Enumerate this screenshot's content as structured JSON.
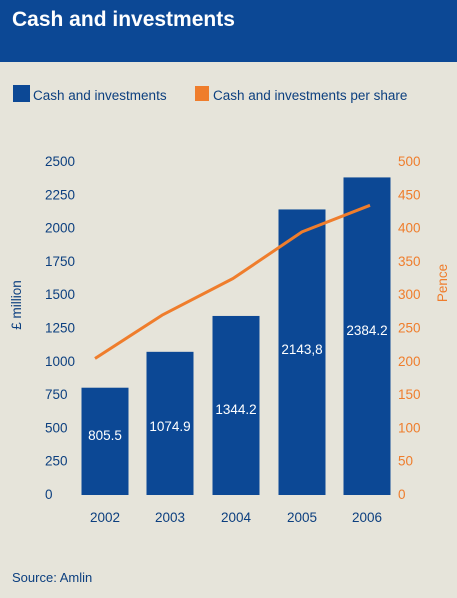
{
  "header": {
    "title": "Cash and investments"
  },
  "footer": {
    "source": "Source: Amlin"
  },
  "colors": {
    "bar": "#0c4895",
    "line": "#ef7d2c",
    "header": "#0c4895",
    "background": "#e6e4da",
    "axis_text": "#0c3f7f"
  },
  "chart_data": {
    "type": "bar",
    "title": "Cash and investments",
    "categories": [
      "2002",
      "2003",
      "2004",
      "2005",
      "2006"
    ],
    "series": [
      {
        "name": "Cash and investments",
        "type": "bar",
        "axis": "left",
        "values": [
          805.5,
          1074.9,
          1344.2,
          2143.8,
          2384.2
        ],
        "value_labels": [
          "805.5",
          "1074.9",
          "1344.2",
          "2143,8",
          "2384.2"
        ]
      },
      {
        "name": "Cash and investments per share",
        "type": "line",
        "axis": "right",
        "values": [
          205,
          270,
          325,
          395,
          435
        ]
      }
    ],
    "ylabel": "£ million",
    "y2label": "Pence",
    "ylim": [
      0,
      2500
    ],
    "y2lim": [
      0,
      500
    ],
    "yticks": [
      "0",
      "250",
      "500",
      "750",
      "1000",
      "1250",
      "1500",
      "1750",
      "2000",
      "2250",
      "2500"
    ],
    "y2ticks": [
      "0",
      "50",
      "100",
      "150",
      "200",
      "250",
      "300",
      "350",
      "400",
      "450",
      "500"
    ],
    "legend_position": "top",
    "grid": false
  }
}
